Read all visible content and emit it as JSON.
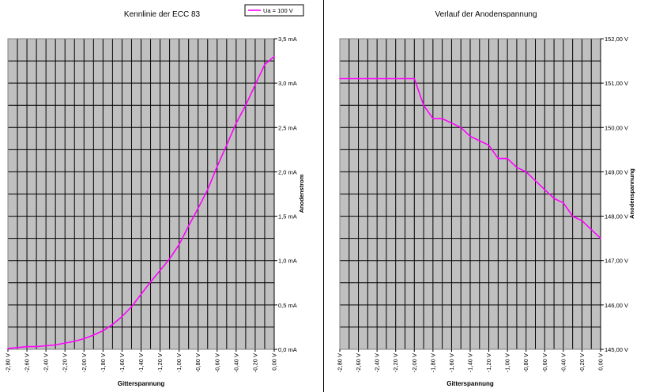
{
  "chart_data": [
    {
      "type": "line",
      "title": "Kennlinie der ECC 83",
      "xlabel": "Gitterspannung",
      "ylabel": "Anodenstrom",
      "x_tick_labels": [
        "-2,80 V",
        "-2,60 V",
        "-2,40 V",
        "-2,20 V",
        "-2,00 V",
        "-1,80 V",
        "-1,60 V",
        "-1,40 V",
        "-1,20 V",
        "-1,00 V",
        "-0,80 V",
        "-0,60 V",
        "-0,40 V",
        "-0,20 V",
        "0,00 V"
      ],
      "y_tick_labels": [
        "0,0 mA",
        "0,5 mA",
        "1,0 mA",
        "1,5 mA",
        "2,0 mA",
        "2,5 mA",
        "3,0 mA",
        "3,5 mA"
      ],
      "xlim": [
        -2.8,
        0.0
      ],
      "ylim": [
        0.0,
        3.5
      ],
      "grid": true,
      "legend": {
        "position": "top-right",
        "entries": [
          "Ua = 100 V"
        ]
      },
      "series": [
        {
          "name": "Ua = 100 V",
          "color": "#ff00ff",
          "x": [
            -2.8,
            -2.7,
            -2.6,
            -2.5,
            -2.4,
            -2.3,
            -2.2,
            -2.1,
            -2.0,
            -1.9,
            -1.8,
            -1.7,
            -1.6,
            -1.5,
            -1.4,
            -1.3,
            -1.2,
            -1.1,
            -1.0,
            -0.9,
            -0.8,
            -0.7,
            -0.6,
            -0.5,
            -0.4,
            -0.3,
            -0.2,
            -0.1,
            0.0
          ],
          "y": [
            0.01,
            0.02,
            0.03,
            0.03,
            0.04,
            0.05,
            0.07,
            0.09,
            0.12,
            0.16,
            0.21,
            0.28,
            0.37,
            0.48,
            0.62,
            0.76,
            0.89,
            1.02,
            1.18,
            1.39,
            1.59,
            1.8,
            2.06,
            2.3,
            2.55,
            2.75,
            2.98,
            3.21,
            3.3
          ]
        }
      ]
    },
    {
      "type": "line",
      "title": "Verlauf der Anodenspannung",
      "xlabel": "Gitterspannung",
      "ylabel": "Anodenspannung",
      "x_tick_labels": [
        "-2,80 V",
        "-2,60 V",
        "-2,40 V",
        "-2,20 V",
        "-2,00 V",
        "-1,80 V",
        "-1,60 V",
        "-1,40 V",
        "-1,20 V",
        "-1,00 V",
        "-0,80 V",
        "-0,60 V",
        "-0,40 V",
        "-0,20 V",
        "0,00 V"
      ],
      "y_tick_labels": [
        "145,00 V",
        "146,00 V",
        "147,00 V",
        "148,00 V",
        "149,00 V",
        "150,00 V",
        "151,00 V",
        "152,00 V"
      ],
      "xlim": [
        -2.8,
        0.0
      ],
      "ylim": [
        145.0,
        152.0
      ],
      "grid": true,
      "series": [
        {
          "color": "#ff00ff",
          "x": [
            -2.8,
            -2.7,
            -2.6,
            -2.5,
            -2.4,
            -2.3,
            -2.2,
            -2.1,
            -2.0,
            -1.9,
            -1.8,
            -1.7,
            -1.6,
            -1.5,
            -1.4,
            -1.3,
            -1.2,
            -1.1,
            -1.0,
            -0.9,
            -0.8,
            -0.7,
            -0.6,
            -0.5,
            -0.4,
            -0.3,
            -0.2,
            -0.1,
            0.0
          ],
          "y": [
            151.1,
            151.1,
            151.1,
            151.1,
            151.1,
            151.1,
            151.1,
            151.1,
            151.1,
            150.5,
            150.2,
            150.2,
            150.1,
            150.0,
            149.8,
            149.7,
            149.6,
            149.3,
            149.3,
            149.1,
            149.0,
            148.8,
            148.6,
            148.4,
            148.3,
            148.0,
            147.9,
            147.7,
            147.5
          ]
        }
      ]
    }
  ]
}
